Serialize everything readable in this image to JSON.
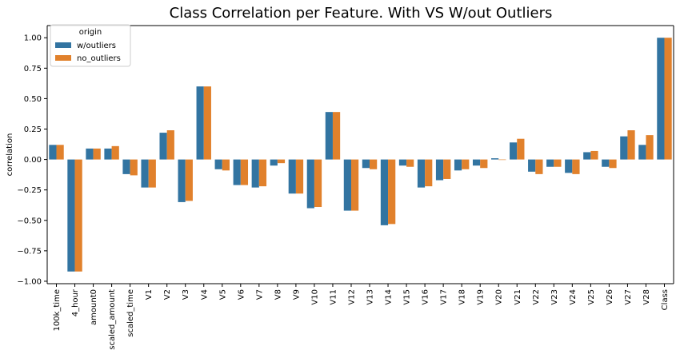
{
  "chart_data": {
    "type": "bar",
    "title": "Class Correlation per Feature. With VS W/out Outliers",
    "xlabel": "",
    "ylabel": "correlation",
    "ylim": [
      -1.02,
      1.1
    ],
    "yticks": [
      "1.00",
      "0.75",
      "0.50",
      "0.25",
      "0.00",
      "−0.25",
      "−0.50",
      "−0.75",
      "−1.00"
    ],
    "ytick_values": [
      1.0,
      0.75,
      0.5,
      0.25,
      0.0,
      -0.25,
      -0.5,
      -0.75,
      -1.0
    ],
    "legend": {
      "title": "origin",
      "position": "top-left"
    },
    "grid": false,
    "categories": [
      "100k_time",
      "4_hour",
      "amount0",
      "scaled_amount",
      "scaled_time",
      "V1",
      "V2",
      "V3",
      "V4",
      "V5",
      "V6",
      "V7",
      "V8",
      "V9",
      "V10",
      "V11",
      "V12",
      "V13",
      "V14",
      "V15",
      "V16",
      "V17",
      "V18",
      "V19",
      "V20",
      "V21",
      "V22",
      "V23",
      "V24",
      "V25",
      "V26",
      "V27",
      "V28",
      "Class"
    ],
    "series": [
      {
        "name": "w/outliers",
        "color": "#3274a1",
        "values": [
          0.12,
          -0.92,
          0.09,
          0.09,
          -0.12,
          -0.23,
          0.22,
          -0.35,
          0.6,
          -0.08,
          -0.21,
          -0.23,
          -0.05,
          -0.28,
          -0.4,
          0.39,
          -0.42,
          -0.07,
          -0.54,
          -0.05,
          -0.23,
          -0.17,
          -0.09,
          -0.05,
          0.01,
          0.14,
          -0.1,
          -0.06,
          -0.11,
          0.06,
          -0.06,
          0.19,
          0.12,
          1.0
        ]
      },
      {
        "name": "no_outliers",
        "color": "#e1812c",
        "values": [
          0.12,
          -0.92,
          0.09,
          0.11,
          -0.13,
          -0.23,
          0.24,
          -0.34,
          0.6,
          -0.09,
          -0.21,
          -0.22,
          -0.03,
          -0.28,
          -0.39,
          0.39,
          -0.42,
          -0.08,
          -0.53,
          -0.06,
          -0.22,
          -0.16,
          -0.08,
          -0.07,
          0.0,
          0.17,
          -0.12,
          -0.06,
          -0.12,
          0.07,
          -0.07,
          0.24,
          0.2,
          1.0
        ]
      }
    ]
  }
}
